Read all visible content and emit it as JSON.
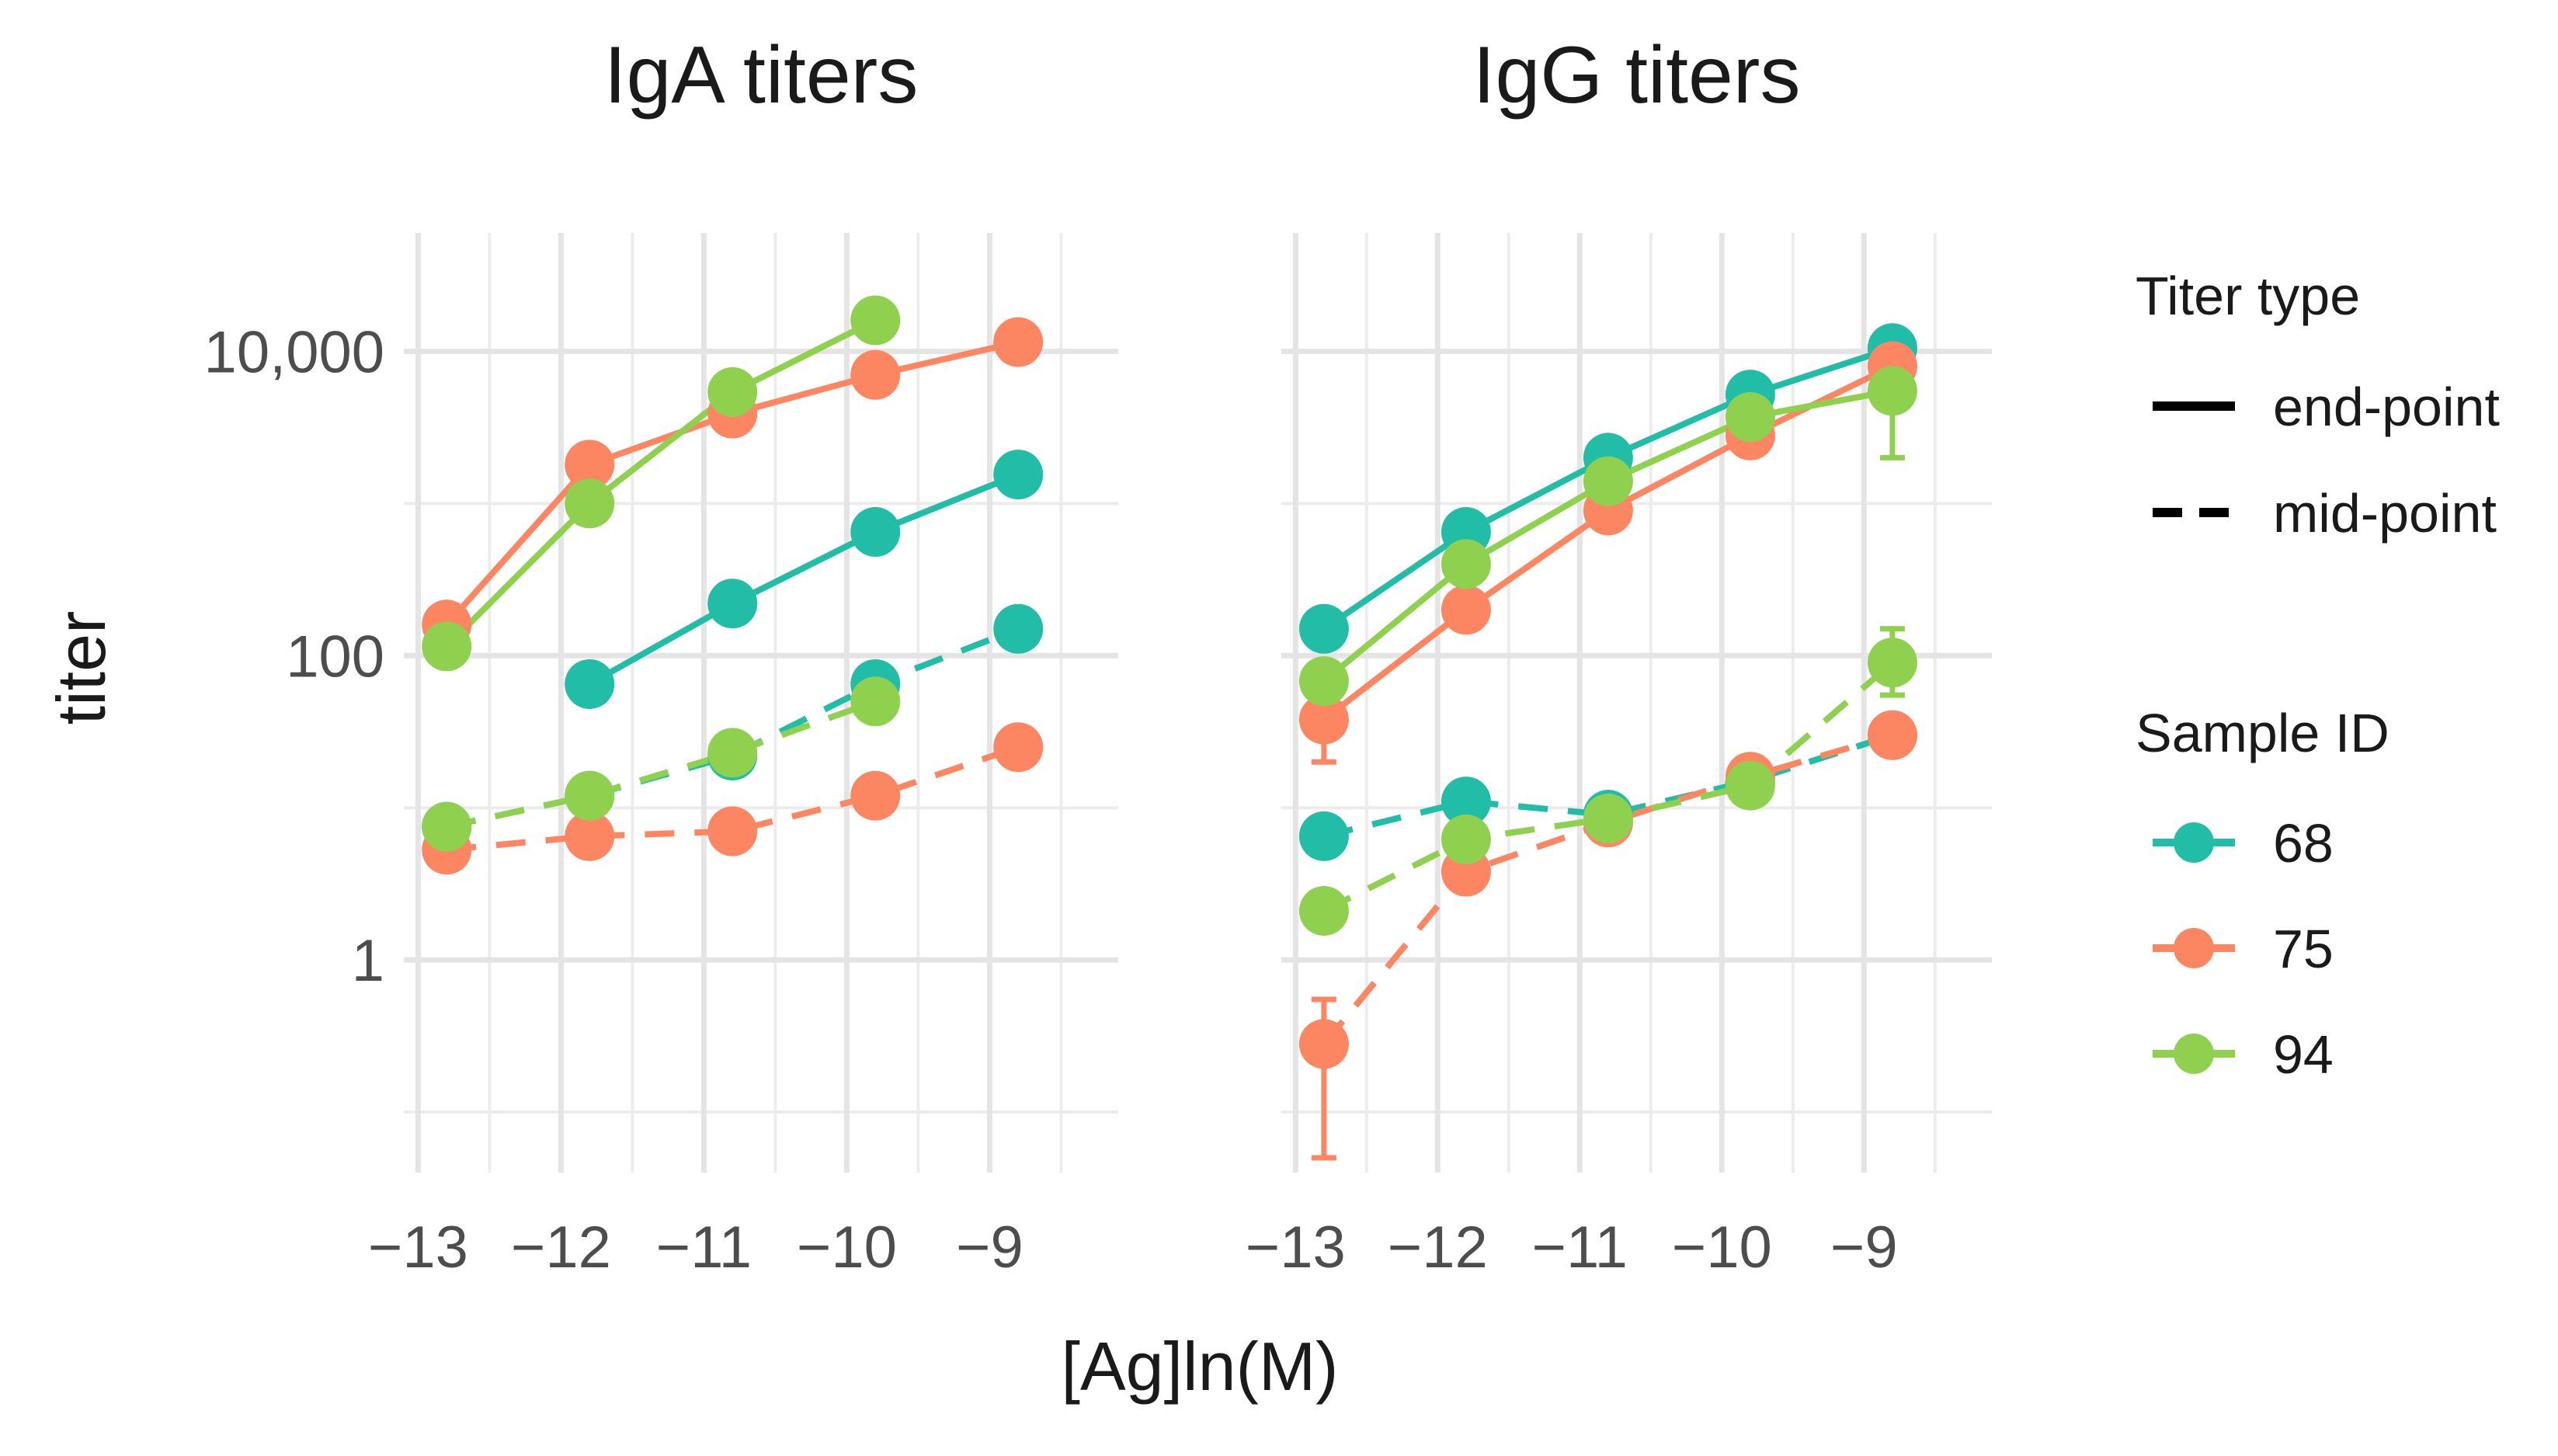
{
  "chart_data": {
    "type": "line",
    "xlabel": "[Ag]ln(M)",
    "ylabel": "titer",
    "y_scale": "log10",
    "x_ticks": [
      -13,
      -12,
      -11,
      -10,
      -9
    ],
    "x_tick_labels": [
      "−13",
      "−12",
      "−11",
      "−10",
      "−9"
    ],
    "y_ticks": [
      1,
      100,
      10000
    ],
    "y_tick_labels": [
      "1",
      "100",
      "10,000"
    ],
    "xlim": [
      -13.1,
      -8.1
    ],
    "ylim": [
      0.04,
      60000
    ],
    "grid": true,
    "colors": {
      "68": "#21bda7",
      "75": "#fb8661",
      "94": "#8fd14f"
    },
    "legend": {
      "position": "right",
      "titer_type_title": "Titer type",
      "titer_types": [
        {
          "label": "end-point",
          "style": "solid"
        },
        {
          "label": "mid-point",
          "style": "dashed"
        }
      ],
      "sample_title": "Sample ID",
      "samples": [
        {
          "label": "68",
          "color": "#21bda7"
        },
        {
          "label": "75",
          "color": "#fb8661"
        },
        {
          "label": "94",
          "color": "#8fd14f"
        }
      ]
    },
    "panels": [
      {
        "title": "IgA titers",
        "series": [
          {
            "sample": "68",
            "titer_type": "end-point",
            "points": [
              [
                -11.8,
                65
              ],
              [
                -10.8,
                220
              ],
              [
                -9.8,
                650
              ],
              [
                -8.8,
                1550
              ]
            ]
          },
          {
            "sample": "75",
            "titer_type": "end-point",
            "points": [
              [
                -12.8,
                160
              ],
              [
                -11.8,
                1800
              ],
              [
                -10.8,
                3900
              ],
              [
                -9.8,
                7000
              ],
              [
                -8.8,
                11500
              ]
            ]
          },
          {
            "sample": "94",
            "titer_type": "end-point",
            "points": [
              [
                -12.8,
                115
              ],
              [
                -11.8,
                1000
              ],
              [
                -10.8,
                5400
              ],
              [
                -9.8,
                16000
              ]
            ]
          },
          {
            "sample": "68",
            "titer_type": "mid-point",
            "points": [
              [
                -12.8,
                7.5
              ],
              [
                -11.8,
                12
              ],
              [
                -10.8,
                22
              ],
              [
                -9.8,
                65
              ],
              [
                -8.8,
                150
              ]
            ]
          },
          {
            "sample": "75",
            "titer_type": "mid-point",
            "points": [
              [
                -12.8,
                5.3
              ],
              [
                -11.8,
                6.5
              ],
              [
                -10.8,
                7
              ],
              [
                -9.8,
                12
              ],
              [
                -8.8,
                25
              ]
            ]
          },
          {
            "sample": "94",
            "titer_type": "mid-point",
            "points": [
              [
                -12.8,
                7.5
              ],
              [
                -11.8,
                12
              ],
              [
                -10.8,
                23
              ],
              [
                -9.8,
                50
              ]
            ]
          }
        ],
        "error_bars": []
      },
      {
        "title": "IgG titers",
        "series": [
          {
            "sample": "68",
            "titer_type": "end-point",
            "points": [
              [
                -12.8,
                150
              ],
              [
                -11.8,
                650
              ],
              [
                -10.8,
                2000
              ],
              [
                -9.8,
                5200
              ],
              [
                -8.8,
                10500
              ]
            ]
          },
          {
            "sample": "75",
            "titer_type": "end-point",
            "points": [
              [
                -12.8,
                38
              ],
              [
                -11.8,
                200
              ],
              [
                -10.8,
                900
              ],
              [
                -9.8,
                2800
              ],
              [
                -8.8,
                8000
              ]
            ]
          },
          {
            "sample": "94",
            "titer_type": "end-point",
            "points": [
              [
                -12.8,
                68
              ],
              [
                -11.8,
                400
              ],
              [
                -10.8,
                1400
              ],
              [
                -9.8,
                3700
              ],
              [
                -8.8,
                5500
              ]
            ]
          },
          {
            "sample": "68",
            "titer_type": "mid-point",
            "points": [
              [
                -12.8,
                6.5
              ],
              [
                -11.8,
                11
              ],
              [
                -10.8,
                9
              ],
              [
                -9.8,
                15
              ],
              [
                -8.8,
                30
              ]
            ]
          },
          {
            "sample": "75",
            "titer_type": "mid-point",
            "points": [
              [
                -12.8,
                0.28
              ],
              [
                -11.8,
                3.8
              ],
              [
                -10.8,
                8
              ],
              [
                -9.8,
                16
              ],
              [
                -8.8,
                30
              ]
            ]
          },
          {
            "sample": "94",
            "titer_type": "mid-point",
            "points": [
              [
                -12.8,
                2.1
              ],
              [
                -11.8,
                6.2
              ],
              [
                -10.8,
                8.5
              ],
              [
                -9.8,
                14
              ],
              [
                -8.8,
                90
              ]
            ]
          }
        ],
        "error_bars": [
          {
            "sample": "75",
            "x": -12.8,
            "low": 0.05,
            "high": 0.55
          },
          {
            "sample": "75",
            "x": -12.8,
            "low": 20,
            "high": 60
          },
          {
            "sample": "94",
            "x": -8.8,
            "low": 2000,
            "high": 7000
          },
          {
            "sample": "94",
            "x": -8.8,
            "low": 55,
            "high": 150
          }
        ]
      }
    ]
  }
}
